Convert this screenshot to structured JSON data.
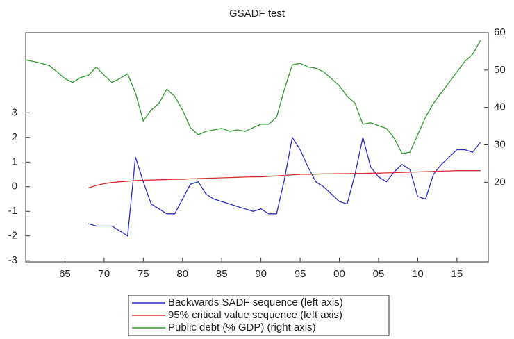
{
  "chart_data": {
    "type": "line",
    "title": "GSADF test",
    "x": [
      1960,
      1961,
      1962,
      1963,
      1964,
      1965,
      1966,
      1967,
      1968,
      1969,
      1970,
      1971,
      1972,
      1973,
      1974,
      1975,
      1976,
      1977,
      1978,
      1979,
      1980,
      1981,
      1982,
      1983,
      1984,
      1985,
      1986,
      1987,
      1988,
      1989,
      1990,
      1991,
      1992,
      1993,
      1994,
      1995,
      1996,
      1997,
      1998,
      1999,
      2000,
      2001,
      2002,
      2003,
      2004,
      2005,
      2006,
      2007,
      2008,
      2009,
      2010,
      2011,
      2012,
      2013,
      2014,
      2015,
      2016,
      2017,
      2018
    ],
    "series": [
      {
        "name": "Backwards SADF sequence (left axis)",
        "color": "#2b2bc8",
        "values": [
          null,
          null,
          null,
          null,
          null,
          null,
          null,
          null,
          -1.5,
          -1.6,
          -1.6,
          -1.6,
          -1.8,
          -2.0,
          1.2,
          0.2,
          -0.7,
          -0.9,
          -1.1,
          -1.1,
          -0.5,
          0.1,
          0.2,
          -0.3,
          -0.5,
          -0.6,
          -0.7,
          -0.8,
          -0.9,
          -1.0,
          -0.9,
          -1.1,
          -1.1,
          0.3,
          2.0,
          1.5,
          0.8,
          0.2,
          0.0,
          -0.3,
          -0.6,
          -0.7,
          0.5,
          2.0,
          0.8,
          0.4,
          0.2,
          0.6,
          0.9,
          0.7,
          -0.4,
          -0.5,
          0.5,
          0.9,
          1.2,
          1.5,
          1.5,
          1.4,
          1.8
        ]
      },
      {
        "name": "95% critical value sequence (left axis)",
        "color": "#d83030",
        "values": [
          null,
          null,
          null,
          null,
          null,
          null,
          null,
          null,
          -0.05,
          0.05,
          0.12,
          0.17,
          0.2,
          0.22,
          0.25,
          0.26,
          0.27,
          0.28,
          0.29,
          0.3,
          0.3,
          0.32,
          0.33,
          0.34,
          0.35,
          0.36,
          0.37,
          0.38,
          0.39,
          0.4,
          0.4,
          0.42,
          0.44,
          0.46,
          0.48,
          0.5,
          0.5,
          0.51,
          0.52,
          0.52,
          0.53,
          0.53,
          0.54,
          0.54,
          0.55,
          0.55,
          0.56,
          0.57,
          0.58,
          0.59,
          0.6,
          0.61,
          0.62,
          0.63,
          0.64,
          0.65,
          0.65,
          0.65,
          0.65
        ]
      },
      {
        "name": "Public debt (% GDP) (right axis)",
        "color": "#2e9a2e",
        "axis": "y2",
        "values": [
          52.7,
          52.3,
          51.8,
          51.2,
          49.5,
          47.7,
          46.7,
          48,
          48.6,
          50.8,
          48.6,
          46.7,
          47.7,
          49,
          43.9,
          36.4,
          39.3,
          41.1,
          44.9,
          43,
          39.3,
          34.6,
          32.7,
          33.6,
          34,
          34.4,
          33.6,
          34,
          33.6,
          34.6,
          35.5,
          35.5,
          37.4,
          44.9,
          51.4,
          51.8,
          50.8,
          50.5,
          49.5,
          47.7,
          45.8,
          43,
          41.1,
          35.5,
          35.9,
          35.1,
          34.4,
          31.8,
          27.7,
          28,
          32.7,
          37.4,
          41.1,
          43.9,
          46.7,
          49.5,
          52.3,
          54.2,
          57.9
        ]
      }
    ],
    "xlim": [
      1960,
      2019
    ],
    "xticks": [
      {
        "value": 1965,
        "label": "65"
      },
      {
        "value": 1970,
        "label": "70"
      },
      {
        "value": 1975,
        "label": "75"
      },
      {
        "value": 1980,
        "label": "80"
      },
      {
        "value": 1985,
        "label": "85"
      },
      {
        "value": 1990,
        "label": "90"
      },
      {
        "value": 1995,
        "label": "95"
      },
      {
        "value": 2000,
        "label": "00"
      },
      {
        "value": 2005,
        "label": "05"
      },
      {
        "value": 2010,
        "label": "10"
      },
      {
        "value": 2015,
        "label": "15"
      }
    ],
    "ylim": [
      -3.05,
      6.25
    ],
    "yticks": [
      -3,
      -2,
      -1,
      0,
      1,
      2,
      3
    ],
    "y2lim": [
      -1.3,
      60
    ],
    "y2ticks": [
      20,
      30,
      40,
      50,
      60
    ],
    "grid": false
  }
}
